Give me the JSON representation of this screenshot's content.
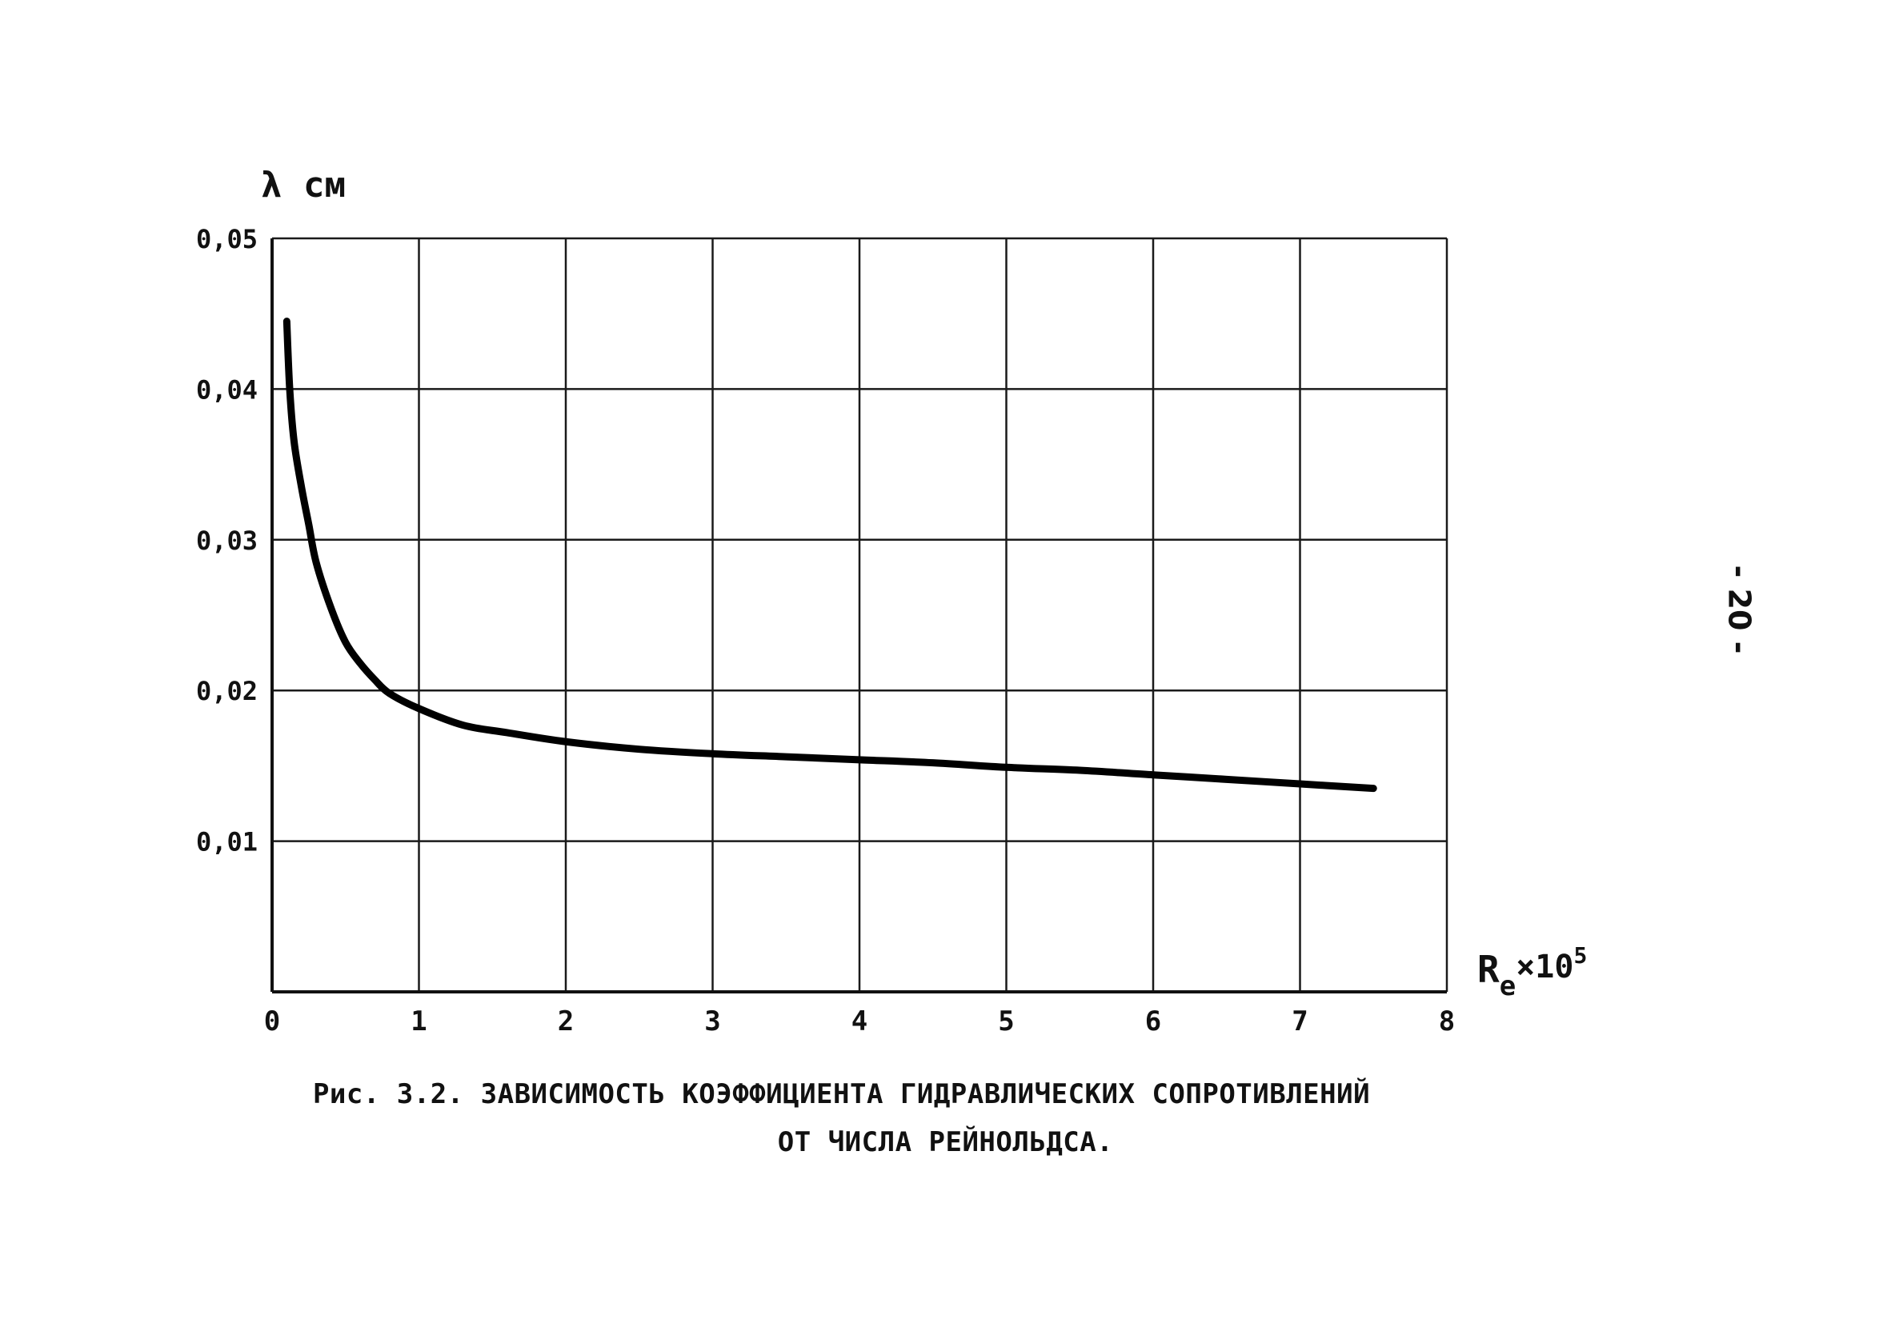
{
  "page_number": "- 20 -",
  "caption": {
    "line1": "Рис. 3.2.  ЗАВИСИМОСТЬ КОЭФФИЦИЕНТА ГИДРАВЛИЧЕСКИХ СОПРОТИВЛЕНИЙ",
    "line2": "ОТ ЧИСЛА РЕЙНОЛЬДСА."
  },
  "chart_data": {
    "type": "line",
    "title": "",
    "ylabel": "λ см",
    "xlabel_base": "R",
    "xlabel_sub": "e",
    "xlabel_mult": "×10",
    "xlabel_exp": "5",
    "xlim": [
      0,
      8
    ],
    "ylim": [
      0,
      0.05
    ],
    "x_ticks": [
      0,
      1,
      2,
      3,
      4,
      5,
      6,
      7,
      8
    ],
    "x_tick_labels": [
      "0",
      "1",
      "2",
      "3",
      "4",
      "5",
      "6",
      "7",
      "8"
    ],
    "y_ticks": [
      0.01,
      0.02,
      0.03,
      0.04,
      0.05
    ],
    "y_tick_labels": [
      "0,01",
      "0,02",
      "0,03",
      "0,04",
      "0,05"
    ],
    "grid": true,
    "series": [
      {
        "x": [
          0.1,
          0.12,
          0.15,
          0.2,
          0.25,
          0.3,
          0.4,
          0.5,
          0.6,
          0.7,
          0.8,
          1.0,
          1.3,
          1.6,
          2.0,
          2.5,
          3.0,
          3.5,
          4.0,
          4.5,
          5.0,
          5.5,
          6.0,
          6.5,
          7.0,
          7.5
        ],
        "y": [
          0.0445,
          0.04,
          0.0365,
          0.0335,
          0.031,
          0.0285,
          0.0255,
          0.0232,
          0.0218,
          0.0207,
          0.0198,
          0.0188,
          0.0177,
          0.0172,
          0.0166,
          0.0161,
          0.0158,
          0.0156,
          0.0154,
          0.0152,
          0.0149,
          0.0147,
          0.0144,
          0.0141,
          0.0138,
          0.0135
        ]
      }
    ]
  }
}
